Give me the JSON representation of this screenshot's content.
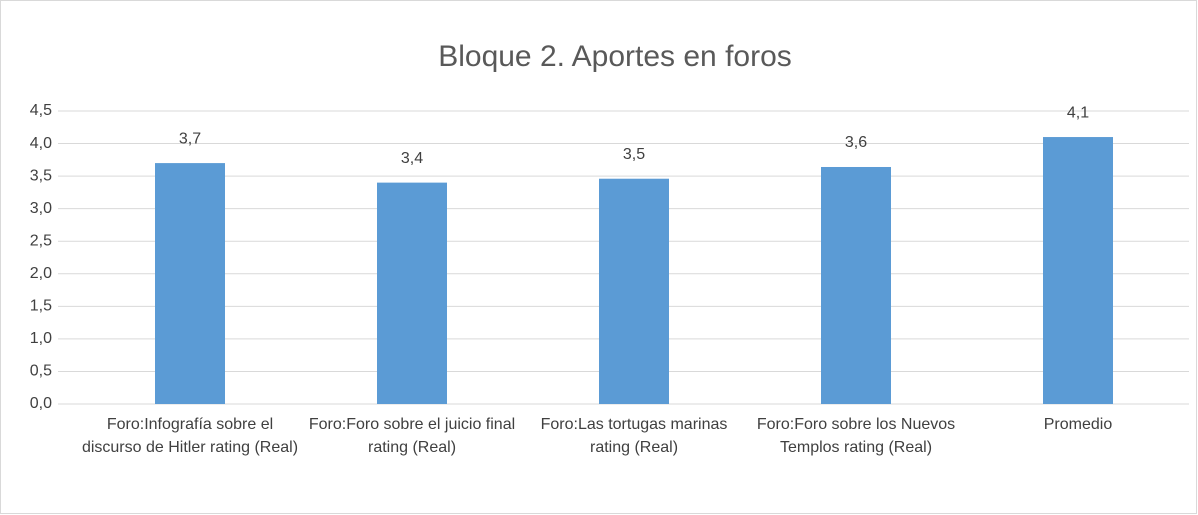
{
  "chart_data": {
    "type": "bar",
    "title": "Bloque 2. Aportes en foros",
    "categories": [
      "Foro:Infografía sobre el discurso de Hitler rating (Real)",
      "Foro:Foro sobre el juicio final rating (Real)",
      "Foro:Las tortugas marinas rating (Real)",
      "Foro:Foro sobre los Nuevos Templos rating (Real)",
      "Promedio"
    ],
    "values": [
      3.7,
      3.4,
      3.46,
      3.64,
      4.1
    ],
    "value_labels": [
      "3,7",
      "3,4",
      "3,5",
      "3,6",
      "4,1"
    ],
    "color": "#5b9bd5",
    "ylim": [
      0,
      4.5
    ],
    "yticks": [
      {
        "value": 0,
        "label": "0,0"
      },
      {
        "value": 0.5,
        "label": "0,5"
      },
      {
        "value": 1,
        "label": "1,0"
      },
      {
        "value": 1.5,
        "label": "1,5"
      },
      {
        "value": 2,
        "label": "2,0"
      },
      {
        "value": 2.5,
        "label": "2,5"
      },
      {
        "value": 3,
        "label": "3,0"
      },
      {
        "value": 3.5,
        "label": "3,5"
      },
      {
        "value": 4,
        "label": "4,0"
      },
      {
        "value": 4.5,
        "label": "4,5"
      }
    ],
    "grid": true
  }
}
